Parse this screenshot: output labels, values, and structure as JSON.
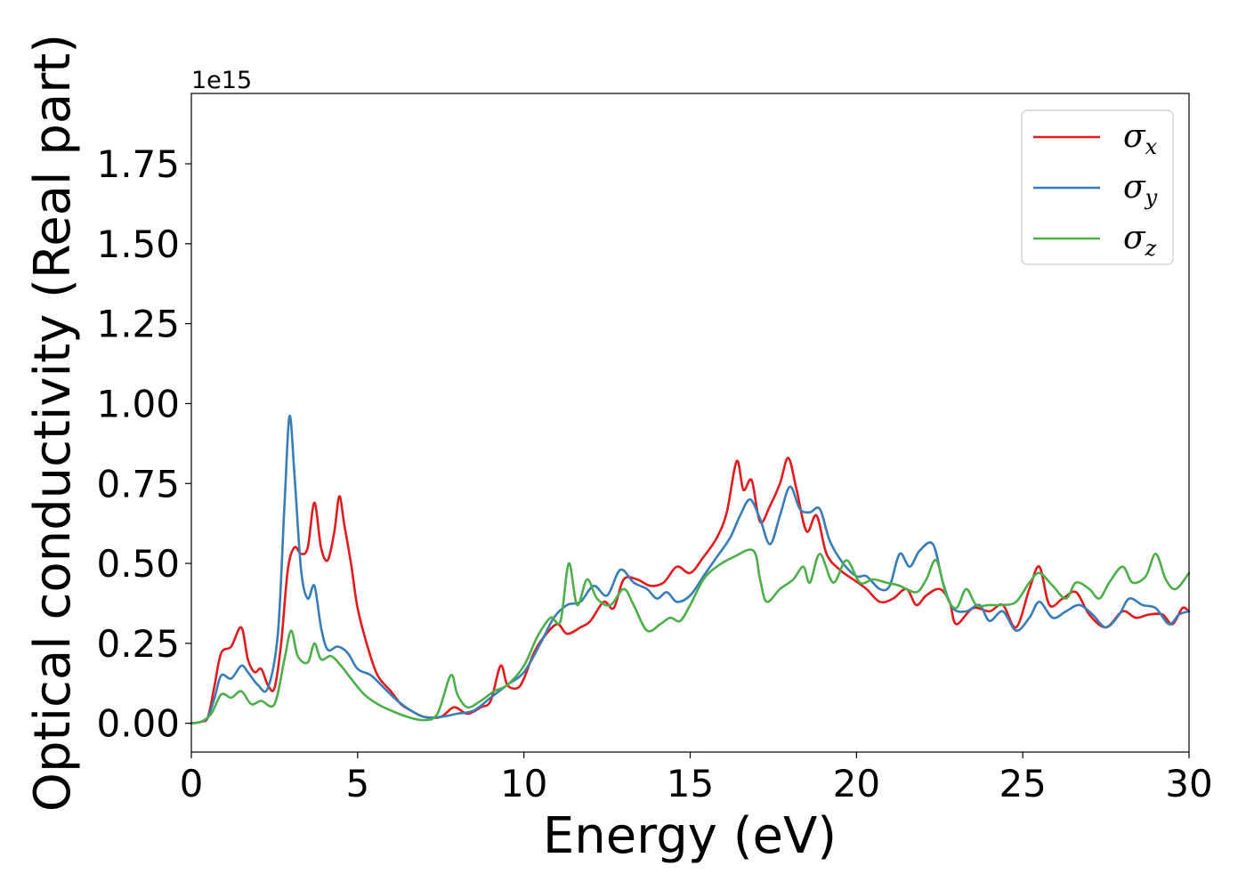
{
  "chart_data": {
    "type": "line",
    "title": "",
    "xlabel": "Energy (eV)",
    "ylabel": "Optical conductivity (Real part)",
    "y_offset_label": "1e15",
    "xlim": [
      0,
      30
    ],
    "ylim": [
      -0.09,
      1.97
    ],
    "grid": false,
    "legend_position": "top-right",
    "x_ticks": [
      0,
      5,
      10,
      15,
      20,
      25,
      30
    ],
    "x_tick_labels": [
      "0",
      "5",
      "10",
      "15",
      "20",
      "25",
      "30"
    ],
    "y_ticks": [
      0.0,
      0.25,
      0.5,
      0.75,
      1.0,
      1.25,
      1.5,
      1.75
    ],
    "y_tick_labels": [
      "0.00",
      "0.25",
      "0.50",
      "0.75",
      "1.00",
      "1.25",
      "1.50",
      "1.75"
    ],
    "series": [
      {
        "name": "σx",
        "legend_base": "σ",
        "legend_sub": "x",
        "color": "#e41a1c",
        "points": [
          [
            0,
            0
          ],
          [
            0.3,
            0.005
          ],
          [
            0.5,
            0.02
          ],
          [
            0.7,
            0.12
          ],
          [
            0.9,
            0.22
          ],
          [
            1.2,
            0.24
          ],
          [
            1.5,
            0.3
          ],
          [
            1.7,
            0.2
          ],
          [
            1.9,
            0.16
          ],
          [
            2.1,
            0.17
          ],
          [
            2.3,
            0.12
          ],
          [
            2.5,
            0.11
          ],
          [
            2.7,
            0.25
          ],
          [
            2.9,
            0.48
          ],
          [
            3.1,
            0.55
          ],
          [
            3.3,
            0.53
          ],
          [
            3.5,
            0.55
          ],
          [
            3.7,
            0.69
          ],
          [
            3.9,
            0.55
          ],
          [
            4.1,
            0.51
          ],
          [
            4.3,
            0.6
          ],
          [
            4.45,
            0.71
          ],
          [
            4.6,
            0.62
          ],
          [
            4.8,
            0.5
          ],
          [
            5.0,
            0.36
          ],
          [
            5.3,
            0.24
          ],
          [
            5.6,
            0.15
          ],
          [
            6.0,
            0.1
          ],
          [
            6.3,
            0.06
          ],
          [
            6.6,
            0.04
          ],
          [
            7.0,
            0.02
          ],
          [
            7.5,
            0.02
          ],
          [
            7.9,
            0.05
          ],
          [
            8.3,
            0.03
          ],
          [
            8.7,
            0.05
          ],
          [
            9.0,
            0.07
          ],
          [
            9.3,
            0.18
          ],
          [
            9.5,
            0.12
          ],
          [
            9.8,
            0.11
          ],
          [
            10.0,
            0.14
          ],
          [
            10.3,
            0.22
          ],
          [
            10.6,
            0.27
          ],
          [
            11.0,
            0.31
          ],
          [
            11.3,
            0.28
          ],
          [
            11.7,
            0.3
          ],
          [
            12.0,
            0.32
          ],
          [
            12.4,
            0.38
          ],
          [
            12.7,
            0.36
          ],
          [
            13.0,
            0.45
          ],
          [
            13.4,
            0.45
          ],
          [
            13.8,
            0.43
          ],
          [
            14.2,
            0.44
          ],
          [
            14.6,
            0.49
          ],
          [
            15.0,
            0.47
          ],
          [
            15.4,
            0.52
          ],
          [
            15.8,
            0.58
          ],
          [
            16.1,
            0.66
          ],
          [
            16.4,
            0.82
          ],
          [
            16.6,
            0.73
          ],
          [
            16.85,
            0.76
          ],
          [
            17.1,
            0.63
          ],
          [
            17.4,
            0.68
          ],
          [
            17.7,
            0.75
          ],
          [
            17.95,
            0.83
          ],
          [
            18.2,
            0.73
          ],
          [
            18.5,
            0.6
          ],
          [
            18.8,
            0.65
          ],
          [
            19.1,
            0.53
          ],
          [
            19.5,
            0.48
          ],
          [
            19.9,
            0.45
          ],
          [
            20.3,
            0.42
          ],
          [
            20.7,
            0.38
          ],
          [
            21.1,
            0.39
          ],
          [
            21.5,
            0.42
          ],
          [
            21.8,
            0.37
          ],
          [
            22.1,
            0.4
          ],
          [
            22.5,
            0.42
          ],
          [
            22.8,
            0.38
          ],
          [
            23.0,
            0.31
          ],
          [
            23.5,
            0.36
          ],
          [
            24.0,
            0.35
          ],
          [
            24.4,
            0.37
          ],
          [
            24.8,
            0.3
          ],
          [
            25.2,
            0.42
          ],
          [
            25.5,
            0.49
          ],
          [
            25.8,
            0.37
          ],
          [
            26.2,
            0.39
          ],
          [
            26.6,
            0.41
          ],
          [
            27.0,
            0.34
          ],
          [
            27.5,
            0.3
          ],
          [
            28.0,
            0.35
          ],
          [
            28.4,
            0.33
          ],
          [
            28.8,
            0.34
          ],
          [
            29.2,
            0.34
          ],
          [
            29.5,
            0.31
          ],
          [
            29.8,
            0.36
          ],
          [
            30.0,
            0.35
          ]
        ]
      },
      {
        "name": "σy",
        "legend_base": "σ",
        "legend_sub": "y",
        "color": "#377eb8",
        "points": [
          [
            0,
            0
          ],
          [
            0.3,
            0.005
          ],
          [
            0.5,
            0.02
          ],
          [
            0.7,
            0.08
          ],
          [
            0.9,
            0.15
          ],
          [
            1.2,
            0.14
          ],
          [
            1.5,
            0.18
          ],
          [
            1.7,
            0.16
          ],
          [
            2.0,
            0.12
          ],
          [
            2.3,
            0.11
          ],
          [
            2.6,
            0.28
          ],
          [
            2.8,
            0.68
          ],
          [
            2.95,
            0.96
          ],
          [
            3.1,
            0.78
          ],
          [
            3.3,
            0.48
          ],
          [
            3.5,
            0.39
          ],
          [
            3.7,
            0.43
          ],
          [
            3.9,
            0.3
          ],
          [
            4.1,
            0.23
          ],
          [
            4.4,
            0.24
          ],
          [
            4.7,
            0.22
          ],
          [
            5.0,
            0.17
          ],
          [
            5.4,
            0.15
          ],
          [
            5.8,
            0.11
          ],
          [
            6.2,
            0.07
          ],
          [
            6.6,
            0.04
          ],
          [
            7.0,
            0.02
          ],
          [
            7.5,
            0.02
          ],
          [
            8.0,
            0.03
          ],
          [
            8.5,
            0.04
          ],
          [
            9.0,
            0.08
          ],
          [
            9.5,
            0.12
          ],
          [
            10.0,
            0.16
          ],
          [
            10.5,
            0.25
          ],
          [
            10.9,
            0.33
          ],
          [
            11.3,
            0.37
          ],
          [
            11.7,
            0.38
          ],
          [
            12.1,
            0.43
          ],
          [
            12.5,
            0.4
          ],
          [
            12.9,
            0.48
          ],
          [
            13.3,
            0.44
          ],
          [
            13.7,
            0.42
          ],
          [
            14.0,
            0.39
          ],
          [
            14.3,
            0.41
          ],
          [
            14.6,
            0.38
          ],
          [
            15.0,
            0.4
          ],
          [
            15.4,
            0.46
          ],
          [
            15.8,
            0.52
          ],
          [
            16.2,
            0.58
          ],
          [
            16.5,
            0.65
          ],
          [
            16.8,
            0.7
          ],
          [
            17.1,
            0.64
          ],
          [
            17.4,
            0.56
          ],
          [
            17.7,
            0.65
          ],
          [
            18.0,
            0.74
          ],
          [
            18.3,
            0.67
          ],
          [
            18.6,
            0.66
          ],
          [
            18.9,
            0.67
          ],
          [
            19.2,
            0.57
          ],
          [
            19.6,
            0.5
          ],
          [
            20.0,
            0.46
          ],
          [
            20.3,
            0.46
          ],
          [
            20.7,
            0.42
          ],
          [
            21.0,
            0.43
          ],
          [
            21.3,
            0.53
          ],
          [
            21.6,
            0.49
          ],
          [
            21.9,
            0.54
          ],
          [
            22.3,
            0.56
          ],
          [
            22.6,
            0.44
          ],
          [
            22.9,
            0.36
          ],
          [
            23.3,
            0.35
          ],
          [
            23.7,
            0.37
          ],
          [
            24.0,
            0.32
          ],
          [
            24.4,
            0.35
          ],
          [
            24.8,
            0.29
          ],
          [
            25.2,
            0.33
          ],
          [
            25.5,
            0.38
          ],
          [
            25.9,
            0.33
          ],
          [
            26.3,
            0.35
          ],
          [
            26.7,
            0.37
          ],
          [
            27.1,
            0.34
          ],
          [
            27.5,
            0.3
          ],
          [
            27.9,
            0.34
          ],
          [
            28.2,
            0.39
          ],
          [
            28.6,
            0.37
          ],
          [
            29.0,
            0.36
          ],
          [
            29.4,
            0.31
          ],
          [
            29.7,
            0.34
          ],
          [
            30.0,
            0.35
          ]
        ]
      },
      {
        "name": "σz",
        "legend_base": "σ",
        "legend_sub": "z",
        "color": "#4daf4a",
        "points": [
          [
            0,
            0
          ],
          [
            0.3,
            0.005
          ],
          [
            0.6,
            0.03
          ],
          [
            0.9,
            0.09
          ],
          [
            1.2,
            0.08
          ],
          [
            1.5,
            0.1
          ],
          [
            1.8,
            0.06
          ],
          [
            2.1,
            0.07
          ],
          [
            2.5,
            0.06
          ],
          [
            2.8,
            0.2
          ],
          [
            3.0,
            0.29
          ],
          [
            3.2,
            0.21
          ],
          [
            3.5,
            0.19
          ],
          [
            3.7,
            0.25
          ],
          [
            3.9,
            0.2
          ],
          [
            4.2,
            0.21
          ],
          [
            4.5,
            0.18
          ],
          [
            4.8,
            0.14
          ],
          [
            5.2,
            0.09
          ],
          [
            5.6,
            0.06
          ],
          [
            6.0,
            0.04
          ],
          [
            6.5,
            0.02
          ],
          [
            7.0,
            0.01
          ],
          [
            7.4,
            0.03
          ],
          [
            7.8,
            0.15
          ],
          [
            8.0,
            0.09
          ],
          [
            8.3,
            0.05
          ],
          [
            8.7,
            0.07
          ],
          [
            9.1,
            0.1
          ],
          [
            9.5,
            0.12
          ],
          [
            10.0,
            0.18
          ],
          [
            10.4,
            0.27
          ],
          [
            10.8,
            0.33
          ],
          [
            11.1,
            0.32
          ],
          [
            11.35,
            0.5
          ],
          [
            11.6,
            0.37
          ],
          [
            11.9,
            0.45
          ],
          [
            12.2,
            0.39
          ],
          [
            12.6,
            0.37
          ],
          [
            13.0,
            0.42
          ],
          [
            13.3,
            0.37
          ],
          [
            13.7,
            0.29
          ],
          [
            14.1,
            0.31
          ],
          [
            14.4,
            0.33
          ],
          [
            14.7,
            0.32
          ],
          [
            15.0,
            0.37
          ],
          [
            15.4,
            0.45
          ],
          [
            15.8,
            0.49
          ],
          [
            16.3,
            0.52
          ],
          [
            16.9,
            0.54
          ],
          [
            17.1,
            0.45
          ],
          [
            17.3,
            0.38
          ],
          [
            17.7,
            0.42
          ],
          [
            18.1,
            0.45
          ],
          [
            18.4,
            0.49
          ],
          [
            18.6,
            0.44
          ],
          [
            18.9,
            0.53
          ],
          [
            19.3,
            0.44
          ],
          [
            19.7,
            0.51
          ],
          [
            20.1,
            0.44
          ],
          [
            20.5,
            0.45
          ],
          [
            20.9,
            0.44
          ],
          [
            21.3,
            0.43
          ],
          [
            21.8,
            0.41
          ],
          [
            22.1,
            0.45
          ],
          [
            22.4,
            0.51
          ],
          [
            22.7,
            0.4
          ],
          [
            23.0,
            0.36
          ],
          [
            23.3,
            0.42
          ],
          [
            23.6,
            0.37
          ],
          [
            24.0,
            0.37
          ],
          [
            24.4,
            0.37
          ],
          [
            24.8,
            0.38
          ],
          [
            25.2,
            0.44
          ],
          [
            25.5,
            0.47
          ],
          [
            25.9,
            0.43
          ],
          [
            26.3,
            0.39
          ],
          [
            26.6,
            0.44
          ],
          [
            27.0,
            0.42
          ],
          [
            27.3,
            0.39
          ],
          [
            27.6,
            0.44
          ],
          [
            28.0,
            0.49
          ],
          [
            28.3,
            0.44
          ],
          [
            28.7,
            0.46
          ],
          [
            29.0,
            0.53
          ],
          [
            29.3,
            0.45
          ],
          [
            29.6,
            0.42
          ],
          [
            30.0,
            0.47
          ]
        ]
      }
    ]
  }
}
